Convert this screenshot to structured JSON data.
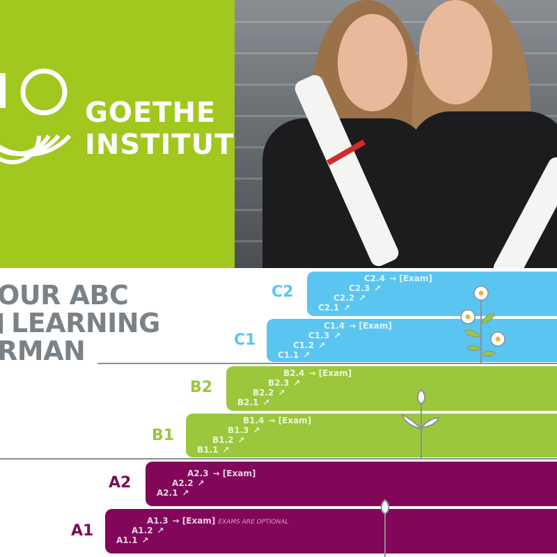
{
  "logo": {
    "line1": "GOETHE",
    "line2": "INSTITUT",
    "color": "#a0c81e"
  },
  "photo": {
    "description_icon": "graduates-photo"
  },
  "title": {
    "line1": "OUR ABC",
    "line2": "LEARNING",
    "line3": "RMAN"
  },
  "colors": {
    "C": "#5bc5f2",
    "B": "#9bc73c",
    "A": "#82075a"
  },
  "levels": {
    "C2": {
      "label": "C2",
      "steps": [
        "C2.4",
        "C2.3",
        "C2.2",
        "C2.1"
      ],
      "exam": "[Exam]"
    },
    "C1": {
      "label": "C1",
      "steps": [
        "C1.4",
        "C1.3",
        "C1.2",
        "C1.1"
      ],
      "exam": "[Exam]"
    },
    "B2": {
      "label": "B2",
      "steps": [
        "B2.4",
        "B2.3",
        "B2.2",
        "B2.1"
      ],
      "exam": "[Exam]"
    },
    "B1": {
      "label": "B1",
      "steps": [
        "B1.4",
        "B1.3",
        "B1.2",
        "B1.1"
      ],
      "exam": "[Exam]"
    },
    "A2": {
      "label": "A2",
      "steps": [
        "A2.3",
        "A2.2",
        "A2.1"
      ],
      "exam": "[Exam]"
    },
    "A1": {
      "label": "A1",
      "steps": [
        "A1.3",
        "A1.2",
        "A1.1"
      ],
      "exam": "[Exam]",
      "note": "EXAMS ARE OPTIONAL"
    }
  },
  "arrow_right": "→",
  "arrow_up": "↗"
}
